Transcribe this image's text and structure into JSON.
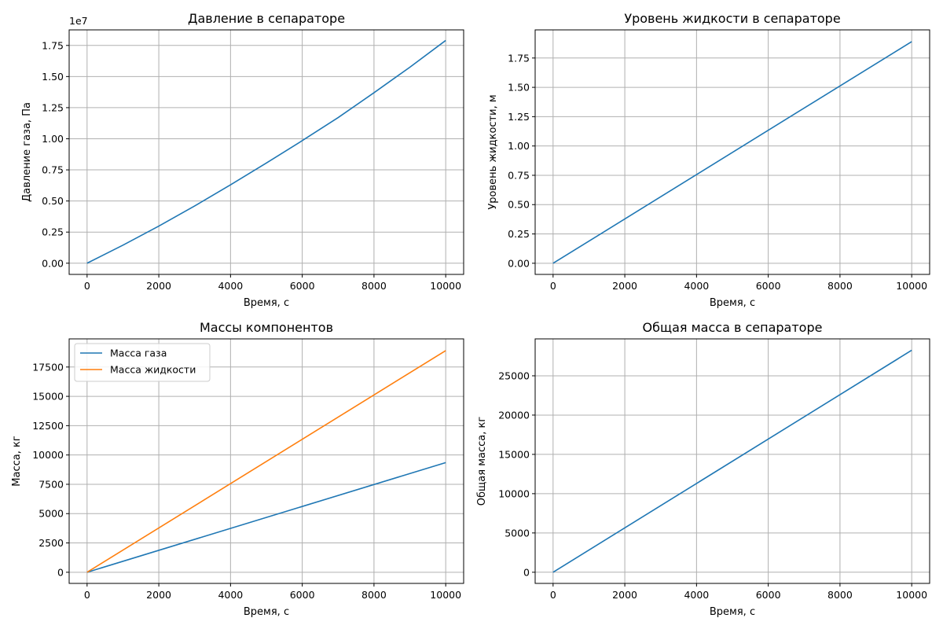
{
  "colors": {
    "series_blue": "#1f77b4",
    "series_orange": "#ff7f0e",
    "grid": "#b0b0b0"
  },
  "chart_data": [
    {
      "id": "pressure",
      "type": "line",
      "title": "Давление в сепараторе",
      "xlabel": "Время, с",
      "ylabel": "Давление газа, Па",
      "offset_text": "1e7",
      "y_scale_factor": 10000000,
      "grid": true,
      "legend": null,
      "xlim": [
        -500,
        10500
      ],
      "ylim": [
        -0.09,
        1.875
      ],
      "xticks": [
        0,
        2000,
        4000,
        6000,
        8000,
        10000
      ],
      "xtick_labels": [
        "0",
        "2000",
        "4000",
        "6000",
        "8000",
        "10000"
      ],
      "yticks": [
        0,
        0.25,
        0.5,
        0.75,
        1.0,
        1.25,
        1.5,
        1.75
      ],
      "ytick_labels": [
        "0.00",
        "0.25",
        "0.50",
        "0.75",
        "1.00",
        "1.25",
        "1.50",
        "1.75"
      ],
      "series": [
        {
          "color": "#1f77b4",
          "x": [
            0,
            1000,
            2000,
            3000,
            4000,
            5000,
            6000,
            7000,
            8000,
            9000,
            10000
          ],
          "y": [
            0,
            0.145,
            0.298,
            0.46,
            0.63,
            0.805,
            0.985,
            1.17,
            1.37,
            1.575,
            1.79
          ]
        }
      ]
    },
    {
      "id": "level",
      "type": "line",
      "title": "Уровень жидкости в сепараторе",
      "xlabel": "Время, с",
      "ylabel": "Уровень жидкости, м",
      "grid": true,
      "legend": null,
      "xlim": [
        -500,
        10500
      ],
      "ylim": [
        -0.095,
        1.99
      ],
      "xticks": [
        0,
        2000,
        4000,
        6000,
        8000,
        10000
      ],
      "xtick_labels": [
        "0",
        "2000",
        "4000",
        "6000",
        "8000",
        "10000"
      ],
      "yticks": [
        0,
        0.25,
        0.5,
        0.75,
        1.0,
        1.25,
        1.5,
        1.75
      ],
      "ytick_labels": [
        "0.00",
        "0.25",
        "0.50",
        "0.75",
        "1.00",
        "1.25",
        "1.50",
        "1.75"
      ],
      "series": [
        {
          "color": "#1f77b4",
          "x": [
            0,
            10000
          ],
          "y": [
            0,
            1.89
          ]
        }
      ]
    },
    {
      "id": "masses",
      "type": "line",
      "title": "Массы компонентов",
      "xlabel": "Время, с",
      "ylabel": "Масса, кг",
      "grid": true,
      "legend": "top-left",
      "xlim": [
        -500,
        10500
      ],
      "ylim": [
        -950,
        19900
      ],
      "xticks": [
        0,
        2000,
        4000,
        6000,
        8000,
        10000
      ],
      "xtick_labels": [
        "0",
        "2000",
        "4000",
        "6000",
        "8000",
        "10000"
      ],
      "yticks": [
        0,
        2500,
        5000,
        7500,
        10000,
        12500,
        15000,
        17500
      ],
      "ytick_labels": [
        "0",
        "2500",
        "5000",
        "7500",
        "10000",
        "12500",
        "15000",
        "17500"
      ],
      "series": [
        {
          "name": "Масса газа",
          "color": "#1f77b4",
          "x": [
            0,
            10000
          ],
          "y": [
            0,
            9350
          ]
        },
        {
          "name": "Масса жидкости",
          "color": "#ff7f0e",
          "x": [
            0,
            10000
          ],
          "y": [
            0,
            18900
          ]
        }
      ]
    },
    {
      "id": "total",
      "type": "line",
      "title": "Общая масса в сепараторе",
      "xlabel": "Время, с",
      "ylabel": "Общая масса, кг",
      "grid": true,
      "legend": null,
      "xlim": [
        -500,
        10500
      ],
      "ylim": [
        -1420,
        29700
      ],
      "xticks": [
        0,
        2000,
        4000,
        6000,
        8000,
        10000
      ],
      "xtick_labels": [
        "0",
        "2000",
        "4000",
        "6000",
        "8000",
        "10000"
      ],
      "yticks": [
        0,
        5000,
        10000,
        15000,
        20000,
        25000
      ],
      "ytick_labels": [
        "0",
        "5000",
        "10000",
        "15000",
        "20000",
        "25000"
      ],
      "series": [
        {
          "color": "#1f77b4",
          "x": [
            0,
            10000
          ],
          "y": [
            0,
            28250
          ]
        }
      ]
    }
  ]
}
